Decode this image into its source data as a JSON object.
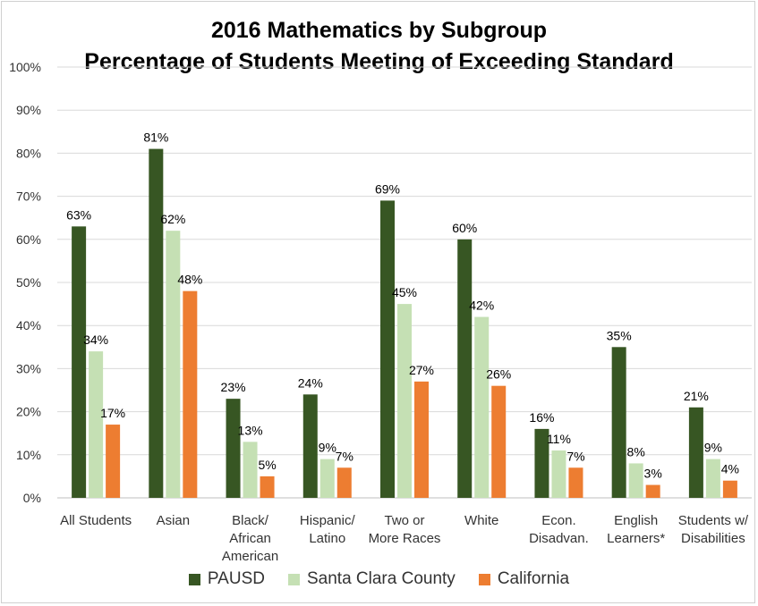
{
  "chart_data": {
    "type": "bar",
    "title": "2016 Mathematics by Subgroup",
    "subtitle": "Percentage of Students Meeting of Exceeding Standard",
    "categories": [
      [
        "All Students"
      ],
      [
        "Asian"
      ],
      [
        "Black/",
        "African",
        "American"
      ],
      [
        "Hispanic/",
        "Latino"
      ],
      [
        "Two or",
        "More Races"
      ],
      [
        "White"
      ],
      [
        "Econ.",
        "Disadvan."
      ],
      [
        "English",
        "Learners*"
      ],
      [
        "Students w/",
        "Disabilities"
      ]
    ],
    "series": [
      {
        "name": "PAUSD",
        "color": "#375623",
        "values": [
          63,
          81,
          23,
          24,
          69,
          60,
          16,
          35,
          21
        ]
      },
      {
        "name": "Santa Clara County",
        "color": "#c5e0b4",
        "values": [
          34,
          62,
          13,
          9,
          45,
          42,
          11,
          8,
          9
        ]
      },
      {
        "name": "California",
        "color": "#ed7d31",
        "values": [
          17,
          48,
          5,
          7,
          27,
          26,
          7,
          3,
          4
        ]
      }
    ],
    "ylim": [
      0,
      100
    ],
    "yticks": [
      "0%",
      "10%",
      "20%",
      "30%",
      "40%",
      "50%",
      "60%",
      "70%",
      "80%",
      "90%",
      "100%"
    ],
    "value_suffix": "%",
    "grid": true,
    "legend_position": "bottom"
  }
}
